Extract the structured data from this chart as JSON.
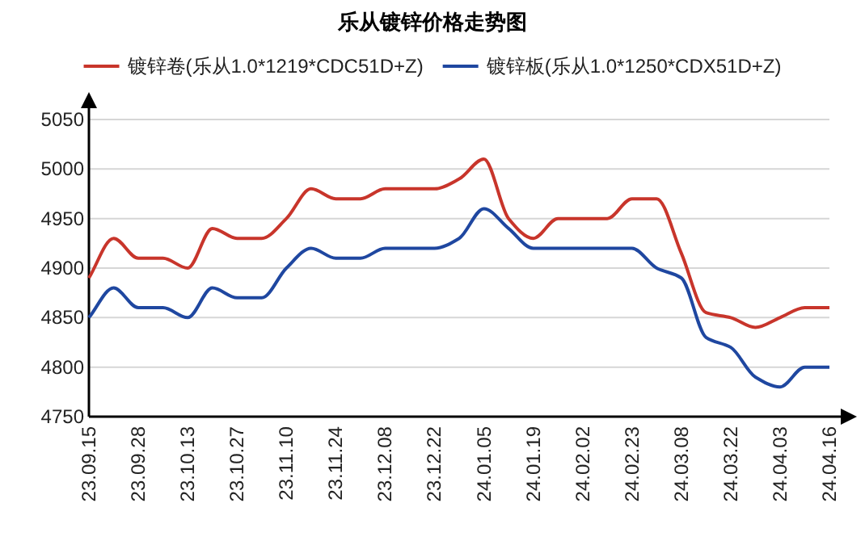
{
  "chart_data": {
    "type": "line",
    "title": "乐从镀锌价格走势图",
    "categories": [
      "23.09.15",
      null,
      "23.09.28",
      null,
      "23.10.13",
      null,
      "23.10.27",
      null,
      "23.11.10",
      null,
      "23.11.24",
      null,
      "23.12.08",
      null,
      "23.12.22",
      null,
      "24.01.05",
      null,
      "24.01.19",
      null,
      "24.02.02",
      null,
      "24.02.23",
      null,
      "24.03.08",
      null,
      "24.03.22",
      null,
      "24.04.03",
      null,
      "24.04.16"
    ],
    "series": [
      {
        "name": "镀锌卷(乐从1.0*1219*CDC51D+Z)",
        "color": "#c8352b",
        "values": [
          4890,
          4930,
          4910,
          4910,
          4900,
          4940,
          4930,
          4930,
          4950,
          4980,
          4970,
          4970,
          4980,
          4980,
          4980,
          4990,
          5010,
          4950,
          4930,
          4950,
          4950,
          4950,
          4970,
          4970,
          4915,
          4855,
          4850,
          4840,
          4850,
          4860,
          4860
        ]
      },
      {
        "name": "镀锌板(乐从1.0*1250*CDX51D+Z)",
        "color": "#1f47a0",
        "values": [
          4850,
          4880,
          4860,
          4860,
          4850,
          4880,
          4870,
          4870,
          4900,
          4920,
          4910,
          4910,
          4920,
          4920,
          4920,
          4930,
          4960,
          4940,
          4920,
          4920,
          4920,
          4920,
          4920,
          4900,
          4890,
          4830,
          4820,
          4790,
          4780,
          4800,
          4800
        ]
      }
    ],
    "ylim": [
      4750,
      5050
    ],
    "yticks": [
      4750,
      4800,
      4850,
      4900,
      4950,
      5000,
      5050
    ],
    "grid": "y",
    "legend": "top",
    "marker": "none",
    "line_style": "solid"
  }
}
